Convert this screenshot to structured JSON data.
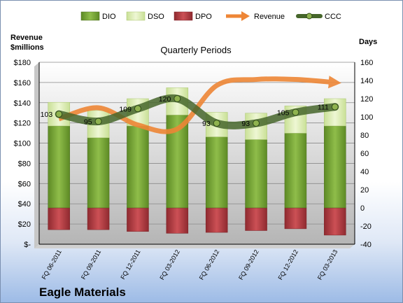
{
  "company": "Eagle Materials",
  "chart_data": {
    "type": "bar",
    "title": "Quarterly Periods",
    "y_left_label_line1": "Revenue",
    "y_left_label_line2": "$millions",
    "y_right_label": "Days",
    "categories": [
      "FQ 06-2011",
      "FQ 09-2011",
      "FQ 12-2011",
      "FQ 03-2012",
      "FQ 06-2012",
      "FQ 09-2012",
      "FQ 12-2012",
      "FQ 03-2013"
    ],
    "ylim_left": [
      0,
      180
    ],
    "ylim_right": [
      -40,
      160
    ],
    "yticks_left": [
      "$-",
      "$20",
      "$40",
      "$60",
      "$80",
      "$100",
      "$120",
      "$140",
      "$160",
      "$180"
    ],
    "yticks_right": [
      -40,
      -20,
      0,
      20,
      40,
      60,
      80,
      100,
      120,
      140,
      160
    ],
    "legend": [
      "DIO",
      "DSO",
      "DPO",
      "Revenue",
      "CCC"
    ],
    "legend_position": "top",
    "grid": true,
    "series": [
      {
        "name": "DIO",
        "axis": "right",
        "kind": "stacked-bar",
        "color": "#77a33a",
        "values": [
          90,
          77,
          90,
          102,
          78,
          75,
          82,
          90
        ]
      },
      {
        "name": "DSO",
        "axis": "right",
        "kind": "stacked-bar",
        "color": "#ddedb4",
        "values": [
          26,
          30,
          30,
          30,
          27,
          29,
          30,
          30
        ]
      },
      {
        "name": "DPO",
        "axis": "right",
        "kind": "negative-bar",
        "color": "#b23a3f",
        "values": [
          -24,
          -24,
          -26,
          -28,
          -27,
          -25,
          -23,
          -30
        ]
      },
      {
        "name": "Revenue",
        "axis": "left",
        "kind": "line",
        "color": "#ee8636",
        "values": [
          124,
          135,
          118,
          114,
          157,
          163,
          163,
          160
        ]
      },
      {
        "name": "CCC",
        "axis": "right",
        "kind": "line",
        "color": "#46662b",
        "values": [
          103,
          95,
          109,
          120,
          93,
          93,
          105,
          111
        ]
      }
    ]
  }
}
